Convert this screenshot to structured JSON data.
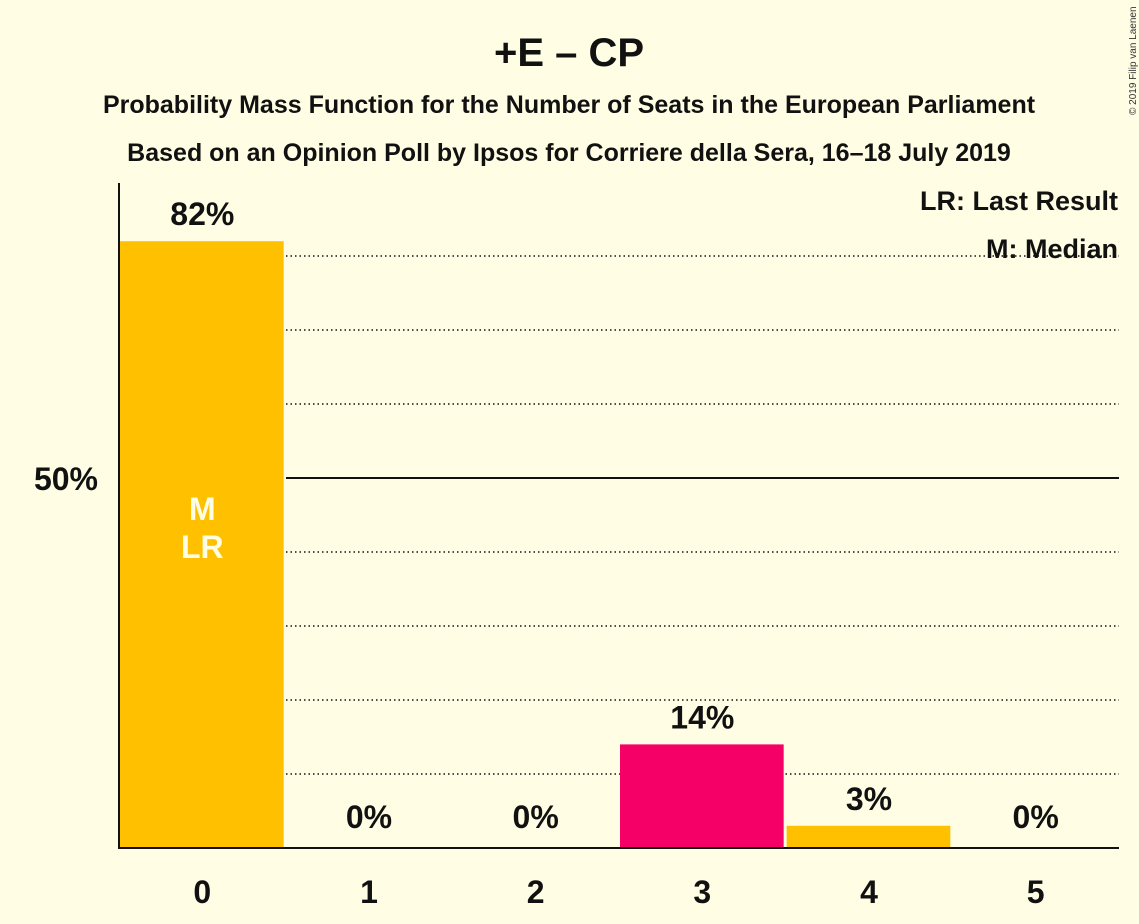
{
  "title": "+E – CP",
  "subtitle1": "Probability Mass Function for the Number of Seats in the European Parliament",
  "subtitle2": "Based on an Opinion Poll by Ipsos for Corriere della Sera, 16–18 July 2019",
  "copyright": "© 2019 Filip van Laenen",
  "legend": {
    "last_result": "LR: Last Result",
    "median": "M: Median"
  },
  "colors": {
    "background": "#FFFDE3",
    "bar_default": "#FFC000",
    "bar_highlight": "#F50066",
    "text": "#111111"
  },
  "chart_data": {
    "type": "bar",
    "categories": [
      "0",
      "1",
      "2",
      "3",
      "4",
      "5"
    ],
    "values": [
      82,
      0,
      0,
      14,
      3,
      0
    ],
    "value_labels": [
      "82%",
      "0%",
      "0%",
      "14%",
      "3%",
      "0%"
    ],
    "bar_colors": [
      "#FFC000",
      "#FFC000",
      "#FFC000",
      "#F50066",
      "#FFC000",
      "#FFC000"
    ],
    "in_bar_markers": {
      "0": [
        "M",
        "LR"
      ]
    },
    "ylim": [
      0,
      90
    ],
    "y_tick_label": "50%",
    "y_tick_value": 50,
    "dotted_gridlines": [
      10,
      20,
      30,
      40,
      60,
      70,
      80
    ],
    "solid_gridline": 50,
    "legend_position": "top-right"
  }
}
